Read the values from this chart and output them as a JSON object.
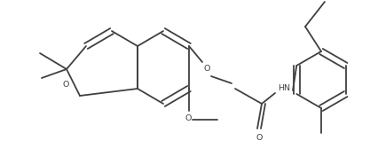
{
  "bg_color": "#ffffff",
  "line_color": "#404040",
  "line_width": 1.3,
  "text_color": "#404040",
  "font_size": 6.8,
  "figsize": [
    4.17,
    1.85
  ],
  "dpi": 100,
  "xlim": [
    0,
    417
  ],
  "ylim": [
    0,
    185
  ]
}
